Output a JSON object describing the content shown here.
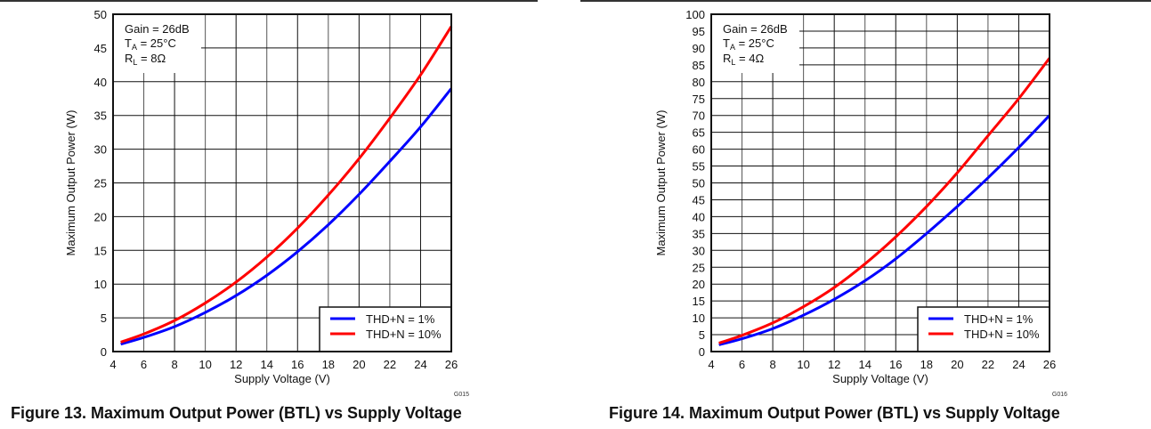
{
  "chart_data": [
    {
      "type": "line",
      "id": "G015",
      "caption": "Figure 13. Maximum Output Power (BTL) vs Supply Voltage",
      "xlabel": "Supply Voltage (V)",
      "ylabel": "Maximum Output Power (W)",
      "xlim": [
        4,
        26
      ],
      "ylim": [
        0,
        50
      ],
      "xticks": [
        4,
        6,
        8,
        10,
        12,
        14,
        16,
        18,
        20,
        22,
        24,
        26
      ],
      "yticks": [
        0,
        5,
        10,
        15,
        20,
        25,
        30,
        35,
        40,
        45,
        50
      ],
      "grid": true,
      "annotation": {
        "gain": "Gain = 26dB",
        "ta_main": "T",
        "ta_sub": "A",
        "ta_rest": " = 25°C",
        "rl_main": "R",
        "rl_sub": "L",
        "rl_rest": " = 8Ω"
      },
      "legend_position": "bottom-right",
      "series": [
        {
          "name": "THD+N = 1%",
          "color": "#0000ff",
          "x": [
            4.5,
            6,
            8,
            10,
            12,
            14,
            16,
            18,
            20,
            22,
            24,
            26
          ],
          "y": [
            1.1,
            2.1,
            3.7,
            5.8,
            8.3,
            11.3,
            14.8,
            18.8,
            23.3,
            28.2,
            33.3,
            39
          ]
        },
        {
          "name": "THD+N = 10%",
          "color": "#ff0000",
          "x": [
            4.5,
            6,
            8,
            10,
            12,
            14,
            16,
            18,
            20,
            22,
            24,
            26
          ],
          "y": [
            1.4,
            2.6,
            4.6,
            7.2,
            10.3,
            14,
            18.3,
            23.2,
            28.6,
            34.6,
            41,
            48.2
          ]
        }
      ]
    },
    {
      "type": "line",
      "id": "G016",
      "caption": "Figure 14. Maximum Output Power (BTL) vs Supply Voltage",
      "xlabel": "Supply Voltage (V)",
      "ylabel": "Maximum Output Power (W)",
      "xlim": [
        4,
        26
      ],
      "ylim": [
        0,
        100
      ],
      "xticks": [
        4,
        6,
        8,
        10,
        12,
        14,
        16,
        18,
        20,
        22,
        24,
        26
      ],
      "yticks": [
        0,
        5,
        10,
        15,
        20,
        25,
        30,
        35,
        40,
        45,
        50,
        55,
        60,
        65,
        70,
        75,
        80,
        85,
        90,
        95,
        100
      ],
      "grid": true,
      "annotation": {
        "gain": "Gain = 26dB",
        "ta_main": "T",
        "ta_sub": "A",
        "ta_rest": " = 25°C",
        "rl_main": "R",
        "rl_sub": "L",
        "rl_rest": " = 4Ω"
      },
      "legend_position": "bottom-right",
      "series": [
        {
          "name": "THD+N = 1%",
          "color": "#0000ff",
          "x": [
            4.5,
            6,
            8,
            10,
            12,
            14,
            16,
            18,
            20,
            22,
            24,
            26
          ],
          "y": [
            2,
            3.8,
            6.8,
            10.8,
            15.5,
            21,
            27.5,
            35,
            43,
            51.5,
            60.5,
            70
          ]
        },
        {
          "name": "THD+N = 10%",
          "color": "#ff0000",
          "x": [
            4.5,
            6,
            8,
            10,
            12,
            14,
            16,
            18,
            20,
            22,
            24,
            26
          ],
          "y": [
            2.5,
            4.8,
            8.5,
            13.3,
            19,
            26,
            34,
            43,
            53,
            64,
            75,
            87
          ]
        }
      ]
    }
  ]
}
